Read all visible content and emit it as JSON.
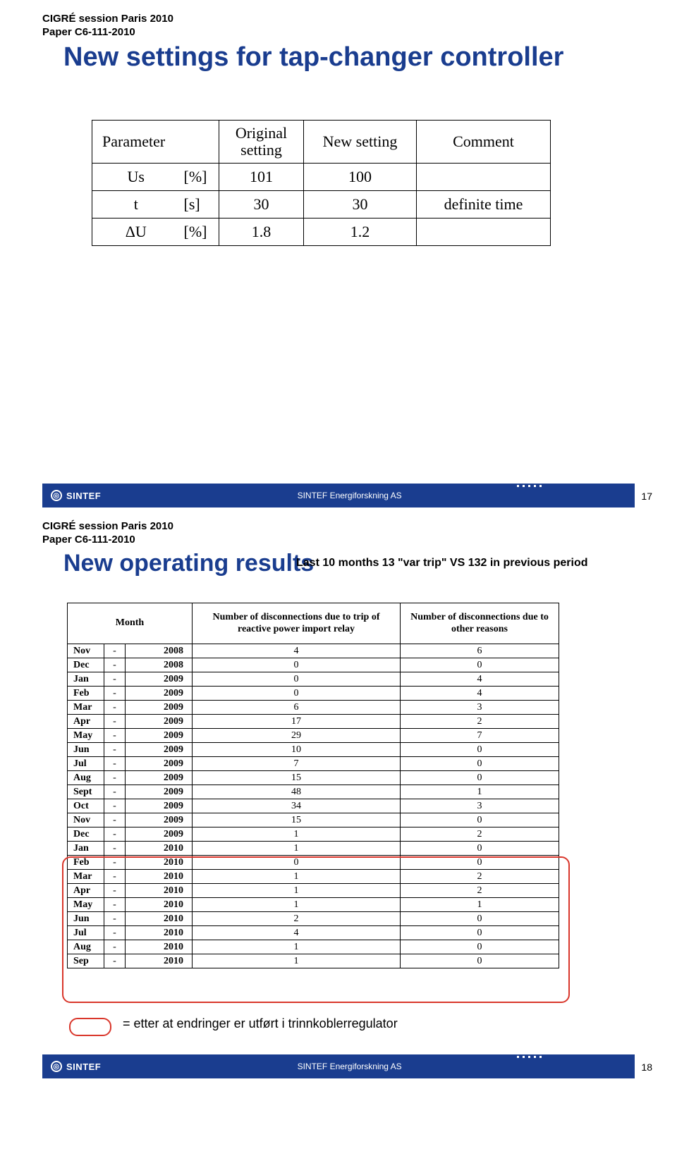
{
  "session": {
    "line1": "CIGRÉ session Paris 2010",
    "line2": "Paper C6-111-2010"
  },
  "slide1": {
    "title": "New settings for tap-changer controller",
    "table": {
      "headers": [
        "Parameter",
        "Original setting",
        "New setting",
        "Comment"
      ],
      "rows": [
        {
          "p1": "Us",
          "p2": "[%]",
          "orig": "101",
          "new": "100",
          "comment": ""
        },
        {
          "p1": "t",
          "p2": "[s]",
          "orig": "30",
          "new": "30",
          "comment": "definite time"
        },
        {
          "p1": "ΔU",
          "p2": "[%]",
          "orig": "1.8",
          "new": "1.2",
          "comment": ""
        }
      ]
    },
    "page": "17"
  },
  "slide2": {
    "title": "New operating results",
    "subtitle": "Last 10 months 13 \"var trip\" VS 132 in previous period",
    "headers": {
      "month": "Month",
      "col1": "Number of disconnections due to trip of reactive power import relay",
      "col2": "Number of disconnections due to other reasons"
    },
    "rows": [
      {
        "m": "Nov",
        "y": "2008",
        "a": "4",
        "b": "6"
      },
      {
        "m": "Dec",
        "y": "2008",
        "a": "0",
        "b": "0"
      },
      {
        "m": "Jan",
        "y": "2009",
        "a": "0",
        "b": "4"
      },
      {
        "m": "Feb",
        "y": "2009",
        "a": "0",
        "b": "4"
      },
      {
        "m": "Mar",
        "y": "2009",
        "a": "6",
        "b": "3"
      },
      {
        "m": "Apr",
        "y": "2009",
        "a": "17",
        "b": "2"
      },
      {
        "m": "May",
        "y": "2009",
        "a": "29",
        "b": "7"
      },
      {
        "m": "Jun",
        "y": "2009",
        "a": "10",
        "b": "0"
      },
      {
        "m": "Jul",
        "y": "2009",
        "a": "7",
        "b": "0"
      },
      {
        "m": "Aug",
        "y": "2009",
        "a": "15",
        "b": "0"
      },
      {
        "m": "Sept",
        "y": "2009",
        "a": "48",
        "b": "1"
      },
      {
        "m": "Oct",
        "y": "2009",
        "a": "34",
        "b": "3"
      },
      {
        "m": "Nov",
        "y": "2009",
        "a": "15",
        "b": "0"
      },
      {
        "m": "Dec",
        "y": "2009",
        "a": "1",
        "b": "2"
      },
      {
        "m": "Jan",
        "y": "2010",
        "a": "1",
        "b": "0"
      },
      {
        "m": "Feb",
        "y": "2010",
        "a": "0",
        "b": "0"
      },
      {
        "m": "Mar",
        "y": "2010",
        "a": "1",
        "b": "2"
      },
      {
        "m": "Apr",
        "y": "2010",
        "a": "1",
        "b": "2"
      },
      {
        "m": "May",
        "y": "2010",
        "a": "1",
        "b": "1"
      },
      {
        "m": "Jun",
        "y": "2010",
        "a": "2",
        "b": "0"
      },
      {
        "m": "Jul",
        "y": "2010",
        "a": "4",
        "b": "0"
      },
      {
        "m": "Aug",
        "y": "2010",
        "a": "1",
        "b": "0"
      },
      {
        "m": "Sep",
        "y": "2010",
        "a": "1",
        "b": "0"
      }
    ],
    "note": "= etter at endringer er utført i trinnkoblerregulator",
    "page": "18"
  },
  "footer": {
    "logo": "SINTEF",
    "org": "SINTEF Energiforskning AS"
  },
  "colors": {
    "brand_blue": "#1a3d8f",
    "highlight_red": "#d9362b"
  }
}
